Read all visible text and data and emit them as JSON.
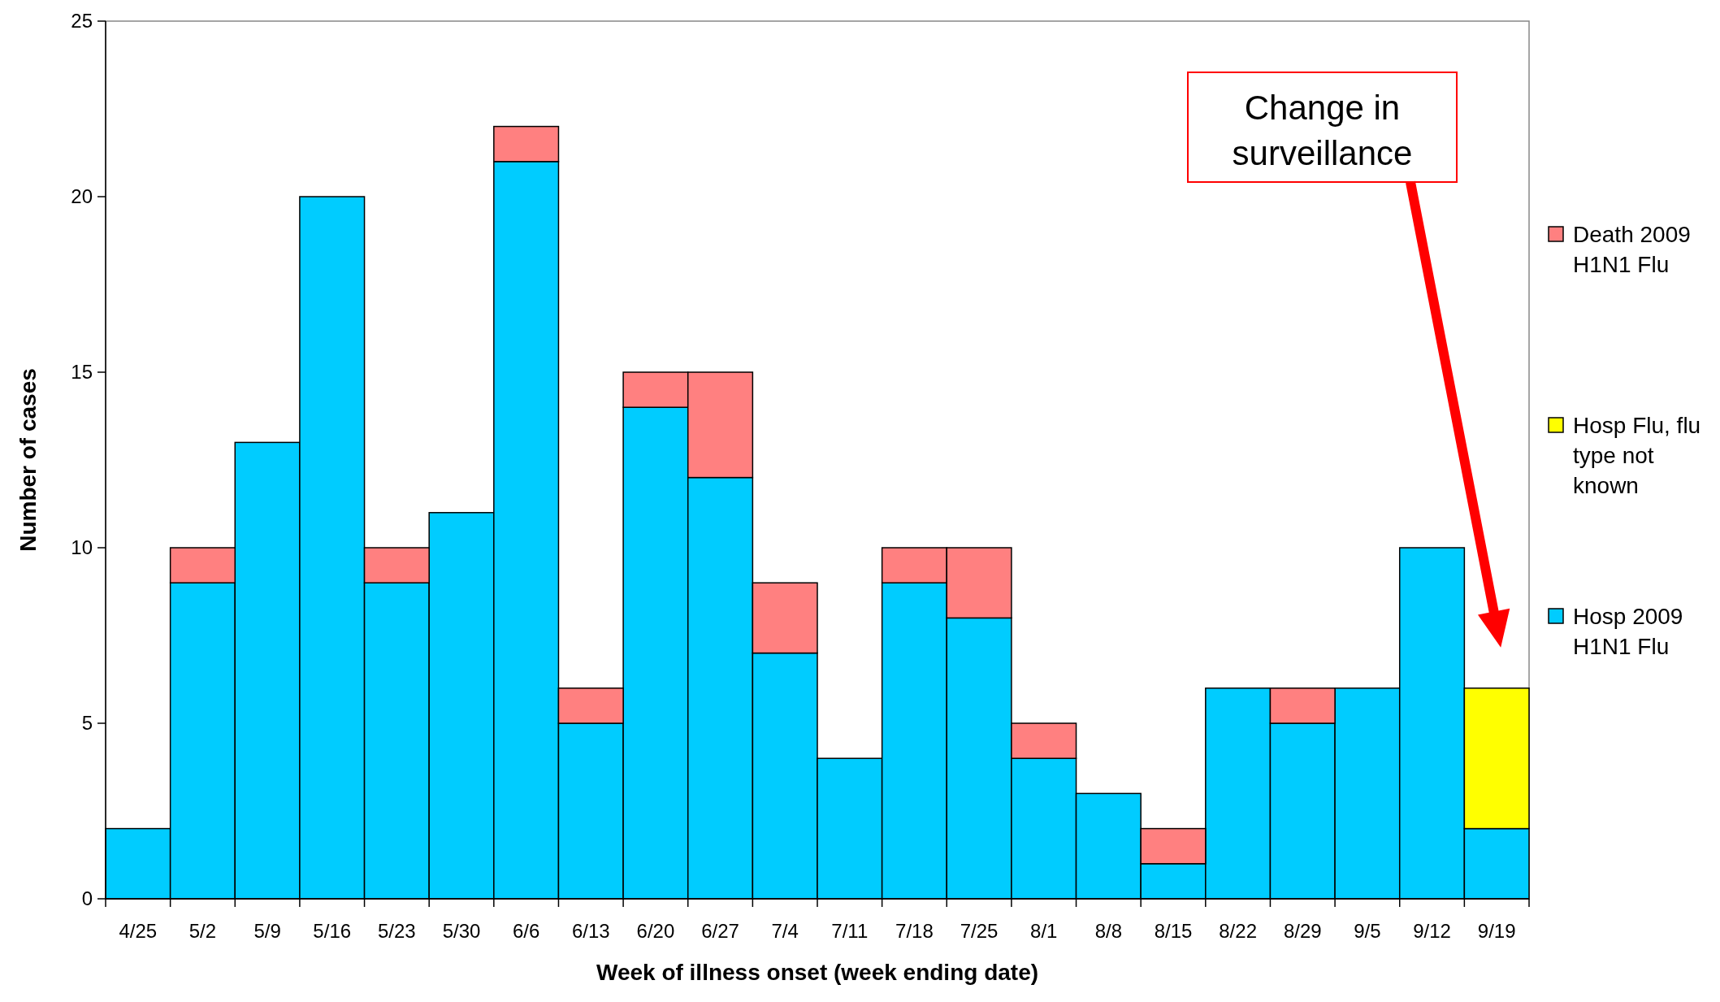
{
  "chart_data": {
    "type": "bar",
    "stacked": true,
    "xlabel": "Week of illness onset (week ending date)",
    "ylabel": "Number of cases",
    "categories": [
      "4/25",
      "5/2",
      "5/9",
      "5/16",
      "5/23",
      "5/30",
      "6/6",
      "6/13",
      "6/20",
      "6/27",
      "7/4",
      "7/11",
      "7/18",
      "7/25",
      "8/1",
      "8/8",
      "8/15",
      "8/22",
      "8/29",
      "9/5",
      "9/12",
      "9/19"
    ],
    "series": [
      {
        "name": "Hosp 2009 H1N1 Flu",
        "color": "#00ccff",
        "values": [
          2,
          9,
          13,
          20,
          9,
          11,
          21,
          5,
          14,
          12,
          7,
          4,
          9,
          8,
          4,
          3,
          1,
          6,
          5,
          6,
          10,
          2
        ]
      },
      {
        "name": "Hosp Flu, flu type not known",
        "color": "#ffff00",
        "values": [
          0,
          0,
          0,
          0,
          0,
          0,
          0,
          0,
          0,
          0,
          0,
          0,
          0,
          0,
          0,
          0,
          0,
          0,
          0,
          0,
          0,
          4
        ]
      },
      {
        "name": "Death 2009 H1N1 Flu",
        "color": "#ff8080",
        "values": [
          0,
          1,
          0,
          0,
          1,
          0,
          1,
          1,
          1,
          3,
          2,
          0,
          1,
          2,
          1,
          0,
          1,
          0,
          1,
          0,
          0,
          0
        ]
      }
    ],
    "ylim": [
      0,
      25
    ],
    "yticks": [
      0,
      5,
      10,
      15,
      20,
      25
    ],
    "legend": "right",
    "annotations": [
      "Change in surveillance"
    ]
  }
}
